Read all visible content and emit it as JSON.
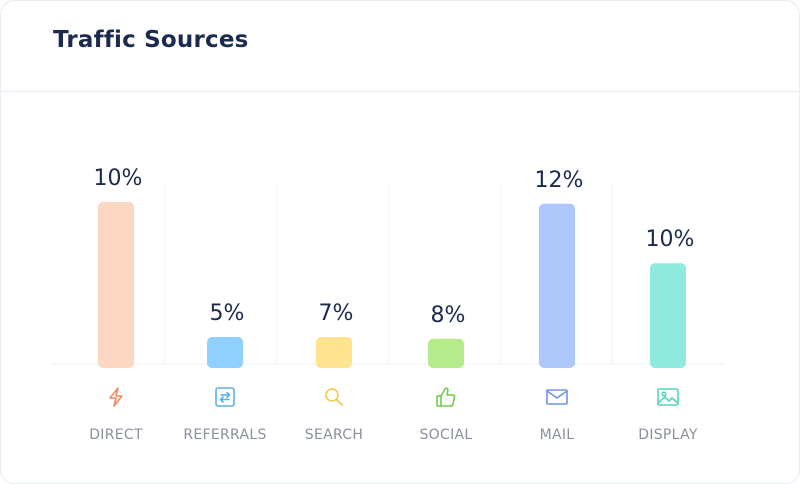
{
  "card": {
    "title": "Traffic Sources"
  },
  "chart_data": {
    "type": "bar",
    "categories": [
      "DIRECT",
      "REFERRALS",
      "SEARCH",
      "SOCIAL",
      "MAIL",
      "DISPLAY"
    ],
    "values": [
      10,
      5,
      7,
      8,
      12,
      10
    ],
    "value_labels": [
      "10%",
      "5%",
      "7%",
      "8%",
      "12%",
      "10%"
    ],
    "unit": "%",
    "bar_fraction_of_max": [
      0.9,
      0.15,
      0.15,
      0.14,
      0.89,
      0.56
    ],
    "colors": [
      "#fdd7c2",
      "#8fd0fe",
      "#fee390",
      "#b5eb8a",
      "#aec8fc",
      "#8deadd"
    ],
    "icon_colors": [
      "#f5895c",
      "#5ab1f0",
      "#f7c845",
      "#72cc4a",
      "#6f93e8",
      "#57d3c1"
    ],
    "icons": [
      "lightning-icon",
      "refresh-icon",
      "search-icon",
      "thumbs-up-icon",
      "mail-icon",
      "image-icon"
    ],
    "grid": true,
    "legend": "none"
  }
}
